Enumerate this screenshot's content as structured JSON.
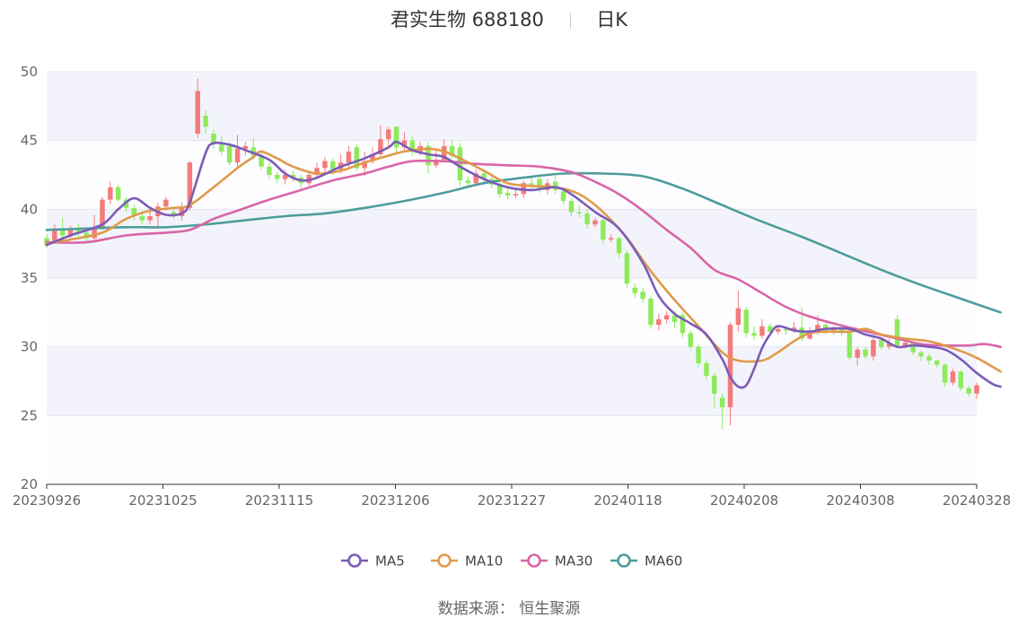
{
  "header": {
    "name": "君实生物",
    "code": "688180",
    "period": "日K"
  },
  "source": "数据来源： 恒生聚源",
  "colors": {
    "up": "#f47b7b",
    "down": "#8eea5c",
    "ma5": "#7b5cb8",
    "ma10": "#e09a4a",
    "ma30": "#d866a8",
    "ma60": "#4e9c9c",
    "band": "#f3f4fb",
    "grid": "#e3e5ef"
  },
  "chart_data": {
    "type": "candlestick",
    "title": "君实生物 688180 日K",
    "ylim": [
      20,
      50
    ],
    "yticks": [
      20,
      25,
      30,
      35,
      40,
      45,
      50
    ],
    "xticks": [
      "20230926",
      "20231025",
      "20231115",
      "20231206",
      "20231227",
      "20240118",
      "20240208",
      "20240308",
      "20240328"
    ],
    "legend": [
      "MA5",
      "MA10",
      "MA30",
      "MA60"
    ],
    "legend_position": "bottom",
    "candles": [
      [
        37.9,
        37.4,
        38.2,
        37.2
      ],
      [
        37.7,
        38.6,
        38.9,
        37.5
      ],
      [
        38.6,
        38.1,
        39.4,
        37.9
      ],
      [
        38.1,
        38.6,
        38.8,
        37.9
      ],
      [
        38.6,
        38.3,
        38.9,
        38.0
      ],
      [
        38.3,
        37.9,
        38.6,
        37.6
      ],
      [
        37.9,
        38.6,
        39.6,
        37.8
      ],
      [
        38.6,
        40.7,
        40.9,
        38.5
      ],
      [
        40.7,
        41.6,
        42.0,
        40.4
      ],
      [
        41.6,
        40.7,
        41.8,
        40.5
      ],
      [
        40.7,
        40.1,
        40.9,
        39.8
      ],
      [
        40.1,
        39.5,
        40.3,
        39.2
      ],
      [
        39.5,
        39.2,
        39.8,
        38.9
      ],
      [
        39.2,
        39.5,
        39.9,
        38.9
      ],
      [
        39.5,
        40.2,
        40.5,
        38.8
      ],
      [
        40.2,
        40.7,
        40.9,
        39.9
      ],
      [
        39.8,
        39.5,
        40.2,
        39.3
      ],
      [
        39.5,
        40.1,
        40.5,
        39.2
      ],
      [
        40.1,
        43.4,
        43.5,
        39.9
      ],
      [
        45.5,
        48.6,
        49.5,
        45.2
      ],
      [
        46.8,
        46.0,
        47.2,
        45.5
      ],
      [
        45.5,
        44.8,
        45.8,
        44.4
      ],
      [
        44.7,
        44.2,
        45.3,
        43.9
      ],
      [
        44.6,
        43.4,
        44.9,
        43.2
      ],
      [
        43.4,
        44.4,
        45.4,
        43.1
      ],
      [
        44.4,
        44.6,
        44.9,
        43.9
      ],
      [
        44.5,
        43.9,
        45.2,
        43.6
      ],
      [
        43.9,
        43.1,
        44.2,
        42.9
      ],
      [
        43.1,
        42.5,
        43.4,
        42.2
      ],
      [
        42.5,
        42.2,
        42.7,
        41.9
      ],
      [
        42.2,
        42.5,
        42.9,
        41.8
      ],
      [
        42.5,
        42.3,
        42.8,
        42.0
      ],
      [
        42.3,
        41.9,
        42.5,
        41.5
      ],
      [
        41.9,
        42.5,
        42.7,
        41.7
      ],
      [
        42.5,
        43.0,
        43.4,
        42.3
      ],
      [
        43.0,
        43.5,
        43.8,
        42.7
      ],
      [
        43.5,
        42.9,
        43.7,
        42.5
      ],
      [
        42.9,
        43.4,
        44.0,
        42.6
      ],
      [
        43.4,
        44.2,
        44.6,
        43.1
      ],
      [
        44.5,
        43.0,
        44.7,
        42.8
      ],
      [
        43.0,
        43.5,
        44.2,
        42.4
      ],
      [
        43.5,
        44.0,
        44.5,
        43.3
      ],
      [
        44.0,
        45.1,
        46.1,
        43.8
      ],
      [
        45.1,
        45.8,
        46.0,
        44.6
      ],
      [
        46.0,
        44.5,
        46.0,
        44.0
      ],
      [
        44.5,
        45.0,
        45.6,
        44.3
      ],
      [
        45.0,
        44.2,
        45.3,
        43.9
      ],
      [
        44.2,
        44.6,
        44.9,
        43.9
      ],
      [
        44.6,
        43.2,
        44.9,
        42.6
      ],
      [
        43.2,
        43.6,
        44.3,
        43.0
      ],
      [
        43.6,
        44.6,
        45.1,
        43.4
      ],
      [
        44.6,
        43.9,
        45.0,
        43.7
      ],
      [
        44.5,
        42.1,
        44.8,
        41.7
      ],
      [
        42.1,
        41.9,
        42.4,
        41.6
      ],
      [
        41.9,
        42.6,
        42.9,
        41.7
      ],
      [
        42.6,
        42.2,
        42.9,
        41.9
      ],
      [
        42.2,
        41.8,
        42.6,
        41.5
      ],
      [
        41.8,
        41.1,
        42.0,
        40.8
      ],
      [
        41.2,
        41.0,
        41.6,
        40.7
      ],
      [
        41.0,
        41.1,
        41.4,
        40.8
      ],
      [
        41.1,
        41.9,
        42.1,
        40.8
      ],
      [
        41.9,
        41.8,
        42.3,
        41.5
      ],
      [
        42.2,
        41.5,
        42.5,
        41.2
      ],
      [
        41.4,
        41.9,
        42.2,
        41.1
      ],
      [
        42.0,
        41.4,
        42.4,
        41.1
      ],
      [
        41.3,
        40.6,
        41.5,
        40.3
      ],
      [
        40.6,
        39.8,
        40.8,
        39.5
      ],
      [
        39.8,
        39.7,
        40.3,
        39.4
      ],
      [
        39.7,
        38.9,
        40.0,
        38.6
      ],
      [
        38.9,
        39.2,
        39.4,
        38.7
      ],
      [
        39.2,
        37.8,
        39.3,
        37.5
      ],
      [
        37.8,
        37.9,
        38.2,
        37.6
      ],
      [
        37.9,
        36.8,
        38.0,
        36.5
      ],
      [
        36.8,
        34.6,
        37.0,
        34.3
      ],
      [
        34.3,
        33.9,
        34.6,
        33.6
      ],
      [
        34.0,
        33.5,
        34.3,
        33.2
      ],
      [
        33.5,
        31.6,
        33.7,
        31.3
      ],
      [
        31.6,
        32.0,
        32.4,
        31.2
      ],
      [
        32.0,
        32.3,
        32.6,
        31.7
      ],
      [
        32.3,
        31.8,
        32.6,
        31.4
      ],
      [
        32.3,
        31.0,
        32.5,
        30.7
      ],
      [
        31.0,
        30.0,
        31.2,
        29.8
      ],
      [
        30.0,
        28.8,
        30.2,
        28.5
      ],
      [
        28.8,
        27.9,
        29.0,
        27.6
      ],
      [
        27.9,
        26.6,
        28.1,
        25.5
      ],
      [
        26.3,
        25.6,
        26.6,
        24.0
      ],
      [
        25.6,
        31.6,
        31.8,
        24.3
      ],
      [
        31.6,
        32.8,
        34.1,
        31.1
      ],
      [
        32.7,
        31.0,
        32.9,
        30.7
      ],
      [
        31.0,
        30.8,
        31.5,
        30.5
      ],
      [
        30.8,
        31.5,
        32.0,
        30.6
      ],
      [
        31.5,
        31.1,
        31.7,
        30.8
      ],
      [
        31.1,
        31.3,
        31.6,
        30.9
      ],
      [
        31.3,
        31.2,
        31.5,
        30.9
      ],
      [
        31.2,
        31.4,
        31.8,
        31.0
      ],
      [
        31.4,
        30.6,
        32.9,
        30.4
      ],
      [
        30.6,
        31.2,
        31.4,
        30.5
      ],
      [
        31.2,
        31.6,
        32.3,
        30.9
      ],
      [
        31.6,
        31.2,
        31.8,
        30.9
      ],
      [
        31.2,
        31.3,
        31.5,
        30.9
      ],
      [
        31.3,
        31.0,
        31.5,
        30.8
      ],
      [
        31.0,
        29.2,
        31.2,
        29.0
      ],
      [
        29.2,
        29.8,
        30.0,
        28.6
      ],
      [
        29.8,
        29.3,
        30.0,
        29.1
      ],
      [
        29.3,
        30.5,
        30.7,
        29.0
      ],
      [
        30.5,
        30.0,
        30.7,
        29.8
      ],
      [
        30.0,
        30.3,
        30.6,
        29.8
      ],
      [
        32.0,
        30.1,
        32.3,
        29.9
      ],
      [
        30.1,
        30.3,
        30.5,
        29.9
      ],
      [
        30.3,
        29.6,
        30.4,
        29.4
      ],
      [
        29.6,
        29.3,
        29.7,
        29.0
      ],
      [
        29.3,
        29.0,
        29.5,
        28.7
      ],
      [
        29.0,
        28.7,
        29.1,
        28.5
      ],
      [
        28.7,
        27.4,
        28.8,
        27.1
      ],
      [
        27.4,
        28.2,
        28.4,
        27.2
      ],
      [
        28.2,
        27.0,
        28.3,
        26.8
      ],
      [
        27.0,
        26.6,
        27.2,
        26.4
      ],
      [
        26.6,
        27.2,
        27.4,
        26.2
      ]
    ],
    "ma5": [
      [
        0,
        37.4
      ],
      [
        3,
        38.1
      ],
      [
        7,
        38.9
      ],
      [
        9,
        40.0
      ],
      [
        11,
        40.8
      ],
      [
        13,
        40.1
      ],
      [
        15,
        39.6
      ],
      [
        17,
        39.7
      ],
      [
        18,
        40.5
      ],
      [
        20,
        44.1
      ],
      [
        21,
        44.8
      ],
      [
        23,
        44.7
      ],
      [
        25,
        44.3
      ],
      [
        28,
        43.6
      ],
      [
        30,
        42.6
      ],
      [
        32,
        42.1
      ],
      [
        34,
        42.3
      ],
      [
        37,
        43.1
      ],
      [
        40,
        43.7
      ],
      [
        43,
        44.5
      ],
      [
        44,
        44.9
      ],
      [
        46,
        44.3
      ],
      [
        48,
        44.0
      ],
      [
        50,
        43.8
      ],
      [
        52,
        43.1
      ],
      [
        55,
        42.2
      ],
      [
        58,
        41.6
      ],
      [
        61,
        41.4
      ],
      [
        64,
        41.6
      ],
      [
        66,
        41.1
      ],
      [
        69,
        39.8
      ],
      [
        72,
        38.6
      ],
      [
        75,
        36.1
      ],
      [
        77,
        33.7
      ],
      [
        79,
        32.4
      ],
      [
        81,
        31.7
      ],
      [
        83,
        30.9
      ],
      [
        85,
        29.1
      ],
      [
        86,
        27.8
      ],
      [
        87,
        27.1
      ],
      [
        88,
        27.2
      ],
      [
        89,
        28.4
      ],
      [
        90,
        29.9
      ],
      [
        91,
        30.9
      ],
      [
        92,
        31.5
      ],
      [
        94,
        31.2
      ],
      [
        96,
        31.1
      ],
      [
        98,
        31.3
      ],
      [
        101,
        31.3
      ],
      [
        103,
        30.9
      ],
      [
        105,
        30.6
      ],
      [
        107,
        30.0
      ],
      [
        109,
        30.1
      ],
      [
        111,
        30.0
      ],
      [
        113,
        29.8
      ],
      [
        115,
        29.1
      ],
      [
        117,
        28.1
      ],
      [
        119,
        27.3
      ],
      [
        120,
        27.1
      ]
    ],
    "ma10": [
      [
        0,
        37.5
      ],
      [
        3,
        37.8
      ],
      [
        7,
        38.3
      ],
      [
        10,
        39.3
      ],
      [
        13,
        39.9
      ],
      [
        16,
        40.1
      ],
      [
        18,
        40.3
      ],
      [
        21,
        41.6
      ],
      [
        24,
        43.0
      ],
      [
        26,
        43.8
      ],
      [
        27,
        44.2
      ],
      [
        29,
        43.7
      ],
      [
        31,
        43.1
      ],
      [
        34,
        42.6
      ],
      [
        37,
        42.8
      ],
      [
        40,
        43.4
      ],
      [
        43,
        43.9
      ],
      [
        45,
        44.2
      ],
      [
        48,
        44.4
      ],
      [
        50,
        44.2
      ],
      [
        52,
        43.7
      ],
      [
        55,
        42.8
      ],
      [
        58,
        41.9
      ],
      [
        61,
        41.7
      ],
      [
        64,
        41.6
      ],
      [
        67,
        41.1
      ],
      [
        70,
        39.8
      ],
      [
        73,
        37.9
      ],
      [
        76,
        35.5
      ],
      [
        79,
        33.4
      ],
      [
        82,
        31.5
      ],
      [
        85,
        29.6
      ],
      [
        87,
        29.0
      ],
      [
        90,
        29.0
      ],
      [
        92,
        29.6
      ],
      [
        94,
        30.4
      ],
      [
        96,
        31.0
      ],
      [
        98,
        31.1
      ],
      [
        101,
        31.1
      ],
      [
        103,
        31.3
      ],
      [
        105,
        30.9
      ],
      [
        108,
        30.6
      ],
      [
        111,
        30.4
      ],
      [
        114,
        29.9
      ],
      [
        117,
        29.2
      ],
      [
        120,
        28.2
      ]
    ],
    "ma30": [
      [
        0,
        37.6
      ],
      [
        5,
        37.6
      ],
      [
        10,
        38.1
      ],
      [
        15,
        38.3
      ],
      [
        18,
        38.5
      ],
      [
        21,
        39.3
      ],
      [
        24,
        39.9
      ],
      [
        28,
        40.7
      ],
      [
        32,
        41.4
      ],
      [
        36,
        42.1
      ],
      [
        40,
        42.6
      ],
      [
        43,
        43.1
      ],
      [
        46,
        43.5
      ],
      [
        50,
        43.5
      ],
      [
        54,
        43.3
      ],
      [
        58,
        43.2
      ],
      [
        62,
        43.1
      ],
      [
        66,
        42.7
      ],
      [
        69,
        42.0
      ],
      [
        72,
        41.1
      ],
      [
        75,
        39.9
      ],
      [
        78,
        38.5
      ],
      [
        81,
        37.2
      ],
      [
        84,
        35.6
      ],
      [
        87,
        34.9
      ],
      [
        90,
        33.9
      ],
      [
        93,
        32.9
      ],
      [
        96,
        32.2
      ],
      [
        99,
        31.7
      ],
      [
        101,
        31.4
      ],
      [
        104,
        31.0
      ],
      [
        107,
        30.6
      ],
      [
        110,
        30.2
      ],
      [
        113,
        30.1
      ],
      [
        116,
        30.1
      ],
      [
        118,
        30.2
      ],
      [
        120,
        30.0
      ]
    ],
    "ma60": [
      [
        0,
        38.5
      ],
      [
        5,
        38.6
      ],
      [
        10,
        38.7
      ],
      [
        15,
        38.7
      ],
      [
        20,
        38.9
      ],
      [
        25,
        39.2
      ],
      [
        30,
        39.5
      ],
      [
        35,
        39.7
      ],
      [
        40,
        40.1
      ],
      [
        45,
        40.6
      ],
      [
        50,
        41.2
      ],
      [
        55,
        41.9
      ],
      [
        60,
        42.3
      ],
      [
        65,
        42.6
      ],
      [
        70,
        42.6
      ],
      [
        75,
        42.4
      ],
      [
        80,
        41.5
      ],
      [
        85,
        40.3
      ],
      [
        90,
        39.1
      ],
      [
        95,
        38.0
      ],
      [
        100,
        36.8
      ],
      [
        105,
        35.6
      ],
      [
        110,
        34.5
      ],
      [
        115,
        33.5
      ],
      [
        120,
        32.5
      ]
    ]
  }
}
